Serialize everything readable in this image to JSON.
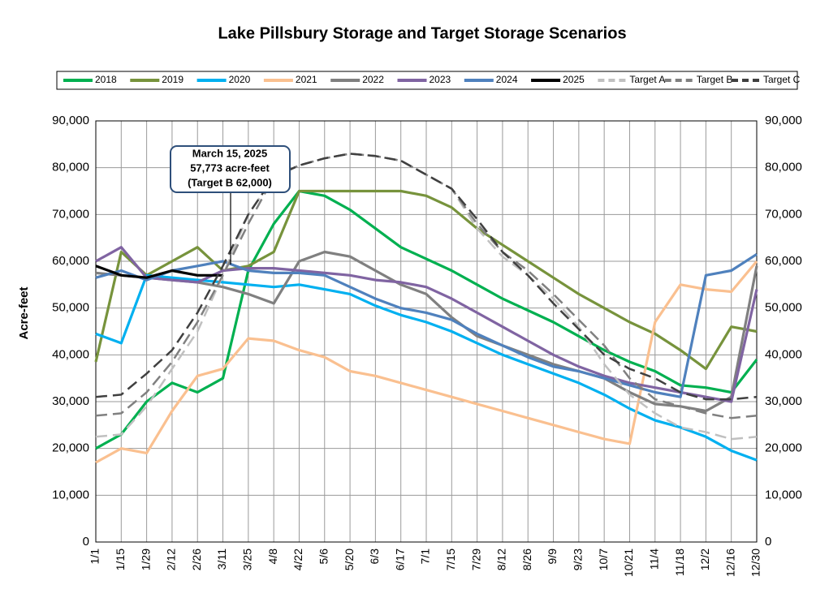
{
  "chart_data": {
    "type": "line",
    "title": "Lake Pillsbury Storage and Target Storage Scenarios",
    "y_label": "Acre-feet",
    "categories": [
      "1/1",
      "1/15",
      "1/29",
      "2/12",
      "2/26",
      "3/11",
      "3/25",
      "4/8",
      "4/22",
      "5/6",
      "5/20",
      "6/3",
      "6/17",
      "7/1",
      "7/15",
      "7/29",
      "8/12",
      "8/26",
      "9/9",
      "9/23",
      "10/7",
      "10/21",
      "11/4",
      "11/18",
      "12/2",
      "12/16",
      "12/30"
    ],
    "ylim": [
      0,
      90000
    ],
    "yticks": [
      {
        "value": 0,
        "label": "0"
      },
      {
        "value": 10000,
        "label": "10,000"
      },
      {
        "value": 20000,
        "label": "20,000"
      },
      {
        "value": 30000,
        "label": "30,000"
      },
      {
        "value": 40000,
        "label": "40,000"
      },
      {
        "value": 50000,
        "label": "50,000"
      },
      {
        "value": 60000,
        "label": "60,000"
      },
      {
        "value": 70000,
        "label": "70,000"
      },
      {
        "value": 80000,
        "label": "80,000"
      },
      {
        "value": 90000,
        "label": "90,000"
      }
    ],
    "grid": true,
    "legend": "top",
    "annotations": [
      "March 15, 2025",
      "57,773 acre-feet",
      "(Target B 62,000)"
    ],
    "series": [
      {
        "name": "2018",
        "color": "#00b050",
        "dashed": false,
        "values": [
          20000,
          23000,
          30000,
          34000,
          32000,
          35000,
          58000,
          68000,
          75000,
          74000,
          71000,
          67000,
          63000,
          60500,
          58000,
          55000,
          52000,
          49500,
          47000,
          44000,
          41000,
          38500,
          36500,
          33500,
          33000,
          32000,
          39000
        ]
      },
      {
        "name": "2019",
        "color": "#77933c",
        "dashed": false,
        "values": [
          38500,
          62000,
          57000,
          60000,
          63000,
          58000,
          59000,
          62000,
          75000,
          75000,
          75000,
          75000,
          75000,
          74000,
          71500,
          67000,
          63500,
          60000,
          56500,
          53000,
          50000,
          47000,
          44500,
          41000,
          37000,
          46000,
          45000
        ]
      },
      {
        "name": "2020",
        "color": "#00b0f0",
        "dashed": false,
        "values": [
          44500,
          42500,
          57000,
          56500,
          56000,
          55500,
          55000,
          54500,
          55000,
          54000,
          53000,
          50500,
          48500,
          47000,
          45000,
          42500,
          40000,
          38000,
          36000,
          34000,
          31500,
          28500,
          26000,
          24500,
          22500,
          19500,
          17500
        ]
      },
      {
        "name": "2021",
        "color": "#fac090",
        "dashed": false,
        "values": [
          17000,
          20000,
          19000,
          28000,
          35500,
          37000,
          43500,
          43000,
          41000,
          39500,
          36500,
          35500,
          34000,
          32500,
          31000,
          29500,
          28000,
          26500,
          25000,
          23500,
          22000,
          21000,
          47000,
          55000,
          54000,
          53500,
          60000
        ]
      },
      {
        "name": "2022",
        "color": "#808080",
        "dashed": false,
        "values": [
          57500,
          57000,
          56500,
          56000,
          55500,
          54500,
          53000,
          51000,
          60000,
          62000,
          61000,
          58000,
          55000,
          53000,
          48000,
          44000,
          42000,
          40000,
          38000,
          36500,
          35000,
          32000,
          29500,
          29000,
          28000,
          31000,
          59000
        ]
      },
      {
        "name": "2023",
        "color": "#8064a2",
        "dashed": false,
        "values": [
          60000,
          63000,
          56500,
          56000,
          55500,
          58000,
          58500,
          58500,
          58000,
          57500,
          57000,
          56000,
          55500,
          54500,
          52000,
          49000,
          46000,
          43000,
          40000,
          37500,
          35500,
          34000,
          33000,
          32000,
          31000,
          30000,
          54000
        ]
      },
      {
        "name": "2024",
        "color": "#4f81bd",
        "dashed": false,
        "values": [
          56500,
          58000,
          56000,
          58000,
          59000,
          60000,
          58000,
          57500,
          57500,
          57000,
          54500,
          52000,
          50000,
          49000,
          47500,
          44500,
          42000,
          39500,
          37500,
          36500,
          35000,
          33500,
          32000,
          31000,
          57000,
          58000,
          61500
        ]
      },
      {
        "name": "2025",
        "color": "#000000",
        "dashed": false,
        "values": [
          59000,
          57000,
          56500,
          58000,
          57000,
          57000,
          null,
          null,
          null,
          null,
          null,
          null,
          null,
          null,
          null,
          null,
          null,
          null,
          null,
          null,
          null,
          null,
          null,
          null,
          null,
          null,
          null
        ]
      },
      {
        "name": "Target A",
        "color": "#c0c0c0",
        "dashed": true,
        "values": [
          22500,
          23000,
          29000,
          37000,
          45000,
          57000,
          70000,
          78000,
          80500,
          82000,
          83000,
          82500,
          81500,
          78500,
          75500,
          67000,
          61000,
          57000,
          52000,
          46000,
          38000,
          31500,
          27500,
          24500,
          23500,
          22000,
          22500
        ]
      },
      {
        "name": "Target B",
        "color": "#808080",
        "dashed": true,
        "values": [
          27000,
          27500,
          32000,
          38500,
          47000,
          57000,
          68000,
          78000,
          80500,
          82000,
          83000,
          82500,
          81500,
          78500,
          75500,
          68000,
          62000,
          58000,
          53000,
          47500,
          42000,
          35000,
          30500,
          29000,
          27500,
          26500,
          27000
        ]
      },
      {
        "name": "Target C",
        "color": "#404040",
        "dashed": true,
        "values": [
          31000,
          31500,
          36000,
          41000,
          49000,
          59000,
          70000,
          78000,
          80500,
          82000,
          83000,
          82500,
          81500,
          78500,
          75500,
          69000,
          62000,
          57000,
          51000,
          45500,
          40000,
          37000,
          35000,
          32000,
          30500,
          30500,
          31000
        ]
      }
    ]
  }
}
